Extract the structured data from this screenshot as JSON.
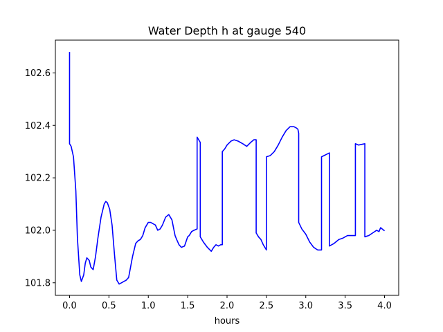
{
  "chart_data": {
    "type": "line",
    "title": "Water Depth h at gauge 540",
    "xlabel": "hours",
    "ylabel": "",
    "xlim": [
      -0.18,
      4.18
    ],
    "ylim": [
      101.752,
      102.725
    ],
    "xticks": [
      0.0,
      0.5,
      1.0,
      1.5,
      2.0,
      2.5,
      3.0,
      3.5,
      4.0
    ],
    "xtick_labels": [
      "0.0",
      "0.5",
      "1.0",
      "1.5",
      "2.0",
      "2.5",
      "3.0",
      "3.5",
      "4.0"
    ],
    "yticks": [
      101.8,
      102.0,
      102.2,
      102.4,
      102.6
    ],
    "ytick_labels": [
      "101.8",
      "102.0",
      "102.2",
      "102.4",
      "102.6"
    ],
    "grid": false,
    "series": [
      {
        "color": "#0000ff",
        "x": [
          0.0,
          0.0,
          0.02,
          0.05,
          0.08,
          0.1,
          0.13,
          0.15,
          0.18,
          0.2,
          0.22,
          0.25,
          0.27,
          0.3,
          0.33,
          0.36,
          0.4,
          0.44,
          0.46,
          0.48,
          0.51,
          0.54,
          0.57,
          0.6,
          0.63,
          0.66,
          0.69,
          0.72,
          0.75,
          0.8,
          0.84,
          0.87,
          0.9,
          0.93,
          0.96,
          1.0,
          1.03,
          1.06,
          1.09,
          1.12,
          1.15,
          1.18,
          1.22,
          1.26,
          1.3,
          1.32,
          1.34,
          1.36,
          1.39,
          1.42,
          1.46,
          1.5,
          1.52,
          1.55,
          1.58,
          1.62,
          1.62,
          1.66,
          1.66,
          1.7,
          1.75,
          1.8,
          1.83,
          1.86,
          1.89,
          1.92,
          1.94,
          1.94,
          1.97,
          2.0,
          2.05,
          2.09,
          2.14,
          2.2,
          2.25,
          2.3,
          2.34,
          2.37,
          2.37,
          2.4,
          2.43,
          2.46,
          2.49,
          2.5,
          2.5,
          2.55,
          2.6,
          2.65,
          2.7,
          2.75,
          2.8,
          2.85,
          2.88,
          2.9,
          2.91,
          2.91,
          2.95,
          3.0,
          3.05,
          3.1,
          3.15,
          3.2,
          3.2,
          3.3,
          3.3,
          3.36,
          3.42,
          3.47,
          3.53,
          3.58,
          3.63,
          3.63,
          3.67,
          3.75,
          3.75,
          3.8,
          3.85,
          3.9,
          3.93,
          3.95,
          3.97,
          4.0
        ],
        "y": [
          102.68,
          102.33,
          102.32,
          102.28,
          102.15,
          101.97,
          101.83,
          101.805,
          101.83,
          101.875,
          101.895,
          101.885,
          101.86,
          101.85,
          101.9,
          101.97,
          102.05,
          102.1,
          102.11,
          102.105,
          102.08,
          102.02,
          101.91,
          101.81,
          101.795,
          101.8,
          101.805,
          101.81,
          101.82,
          101.9,
          101.95,
          101.96,
          101.965,
          101.98,
          102.01,
          102.03,
          102.03,
          102.025,
          102.02,
          102.0,
          102.005,
          102.02,
          102.05,
          102.06,
          102.04,
          102.01,
          101.98,
          101.965,
          101.945,
          101.935,
          101.94,
          101.975,
          101.98,
          101.995,
          102.0,
          102.005,
          102.355,
          102.335,
          101.975,
          101.955,
          101.935,
          101.92,
          101.935,
          101.945,
          101.94,
          101.945,
          101.945,
          102.3,
          102.31,
          102.325,
          102.34,
          102.345,
          102.34,
          102.33,
          102.32,
          102.335,
          102.345,
          102.345,
          101.99,
          101.975,
          101.965,
          101.945,
          101.93,
          101.925,
          102.28,
          102.285,
          102.3,
          102.325,
          102.355,
          102.38,
          102.395,
          102.395,
          102.39,
          102.385,
          102.37,
          102.03,
          102.005,
          101.985,
          101.955,
          101.935,
          101.925,
          101.925,
          102.28,
          102.295,
          101.94,
          101.95,
          101.965,
          101.97,
          101.98,
          101.98,
          101.98,
          102.33,
          102.325,
          102.33,
          101.975,
          101.98,
          101.99,
          102.0,
          101.995,
          102.01,
          102.005,
          101.998
        ]
      }
    ]
  }
}
